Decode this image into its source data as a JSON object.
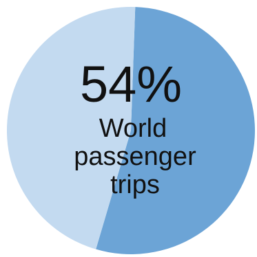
{
  "chart_data": {
    "type": "pie",
    "slices": [
      {
        "label": "World passenger trips",
        "value": 54,
        "color": "#6ca4d6"
      },
      {
        "label": "",
        "value": 46,
        "color": "#c3daf0"
      }
    ]
  },
  "overlay": {
    "percent": "54%",
    "lines": [
      "World",
      "passenger",
      "trips"
    ]
  }
}
